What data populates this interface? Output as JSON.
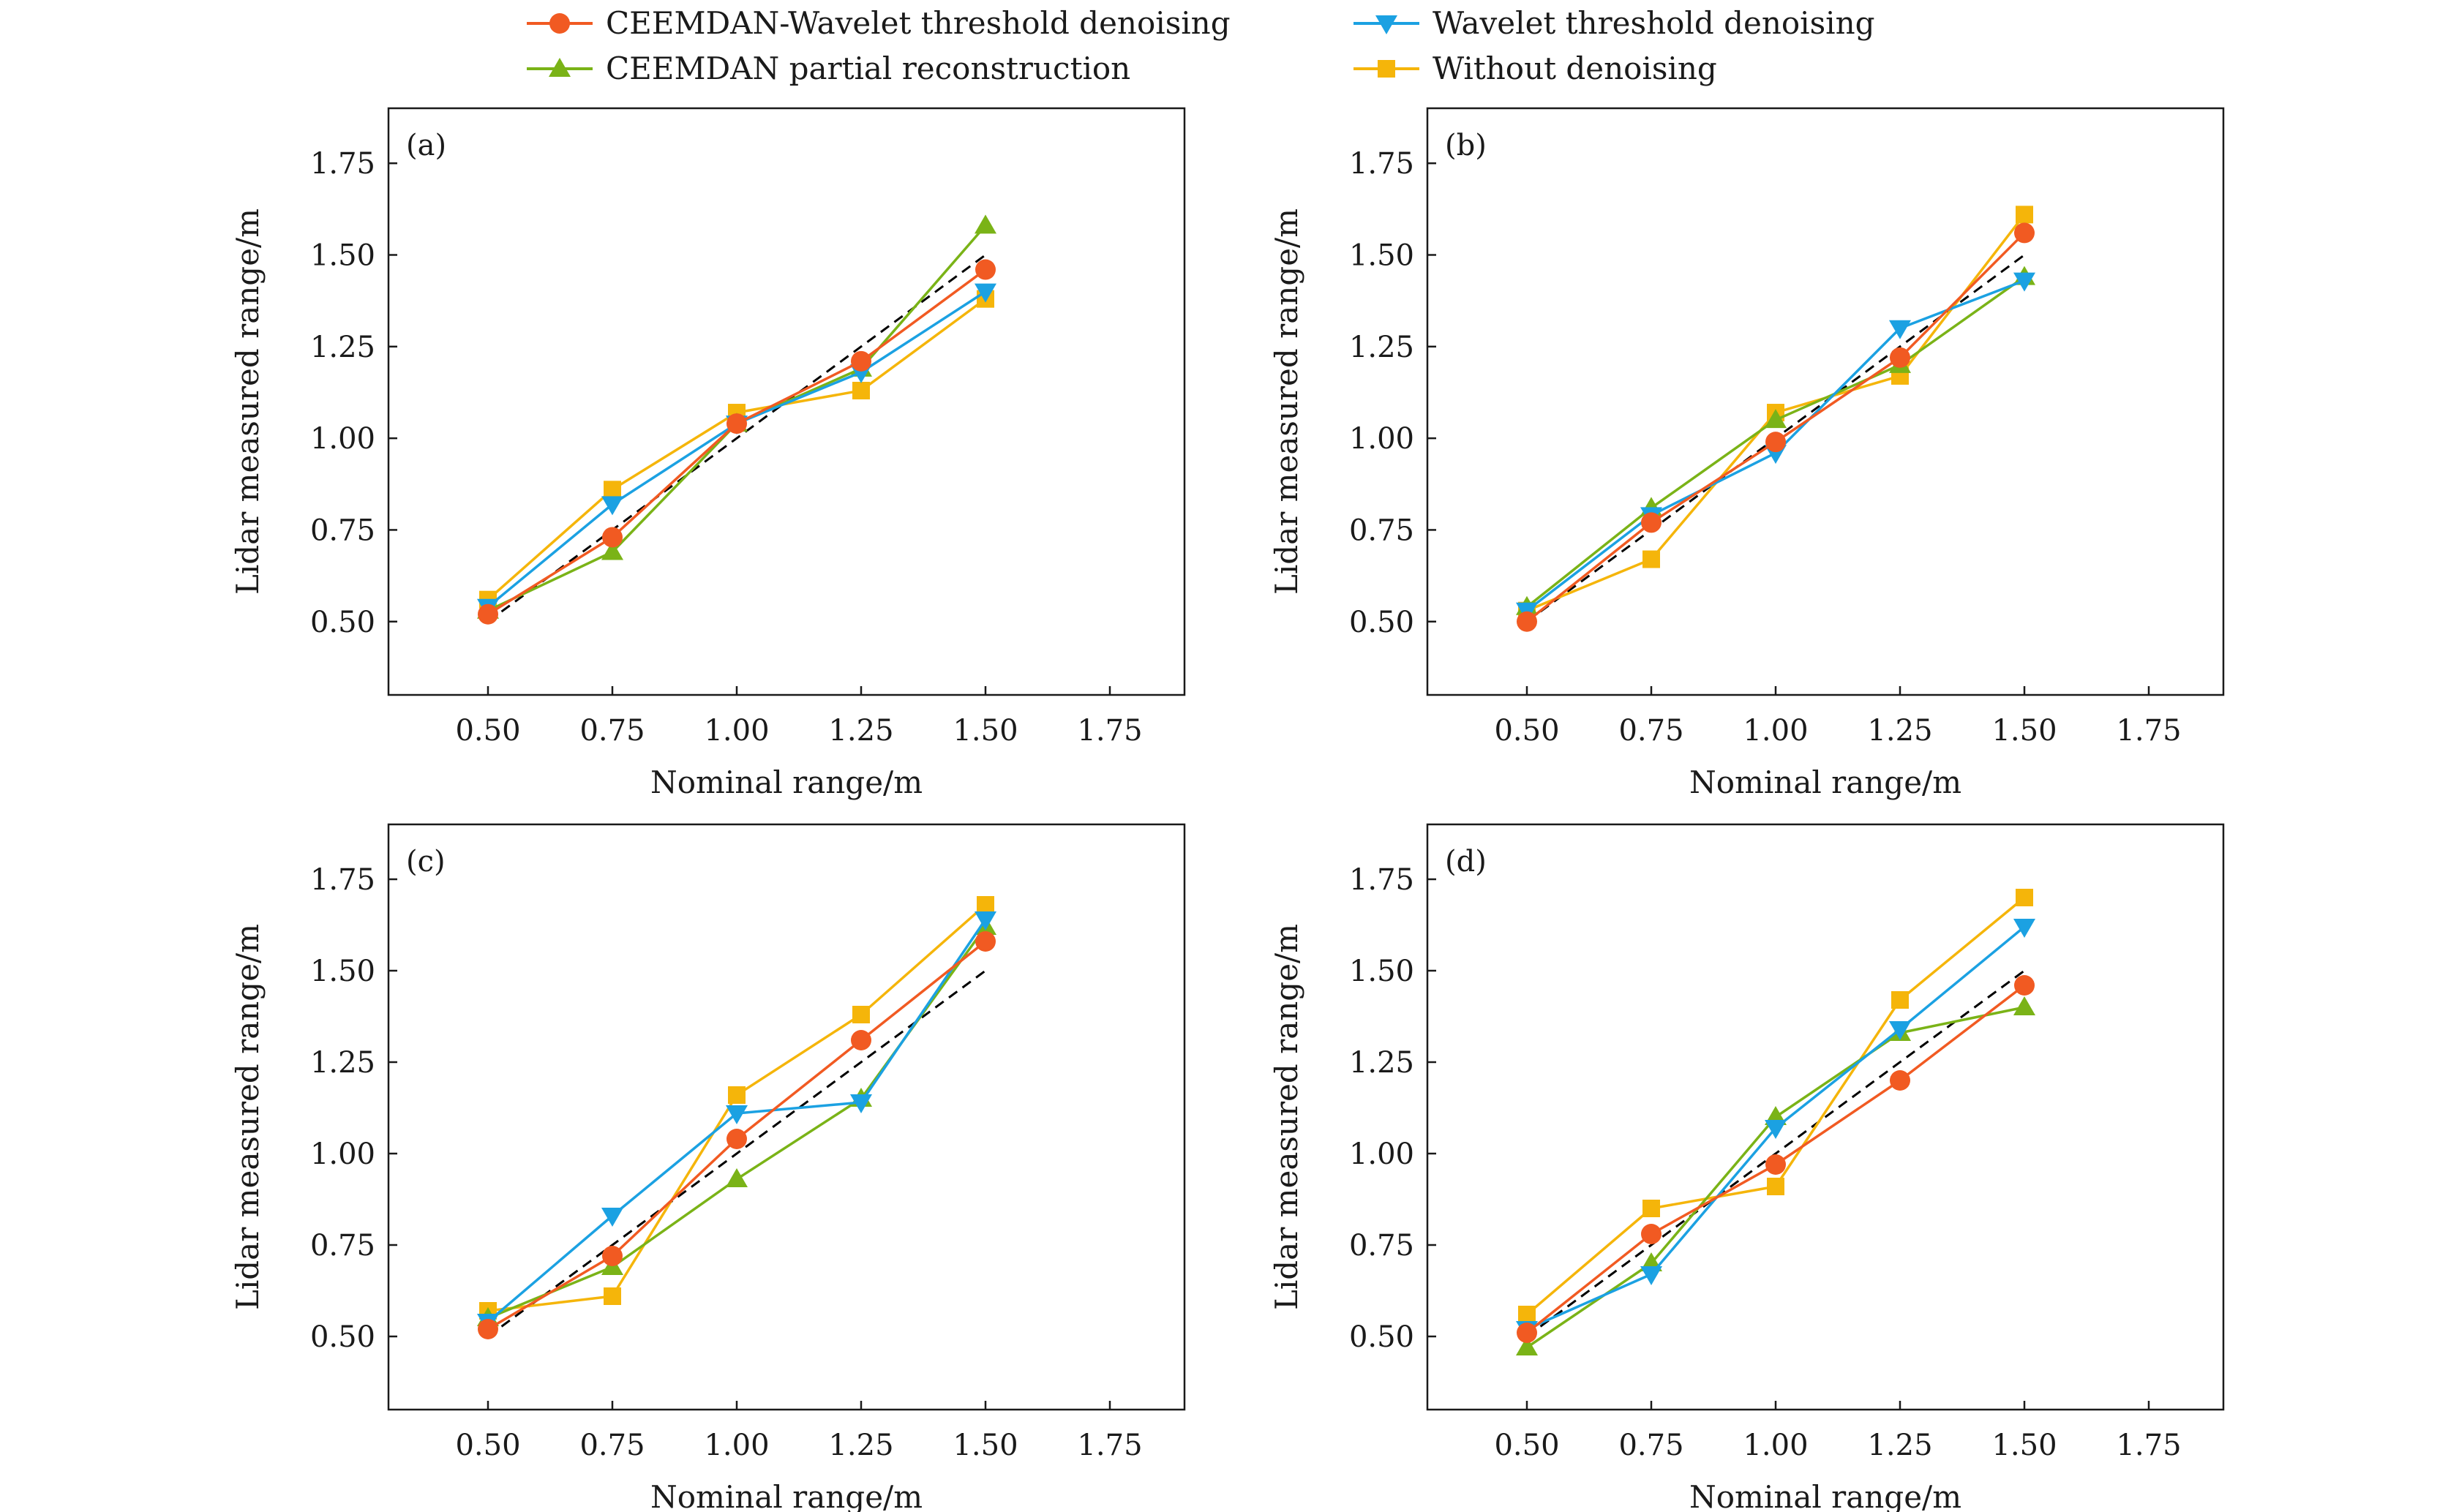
{
  "legend": [
    {
      "name": "CEEMDAN-Wavelet threshold denoising",
      "color": "#f15a22",
      "marker": "circle"
    },
    {
      "name": "Wavelet threshold denoising",
      "color": "#1ba1e2",
      "marker": "triangle-down"
    },
    {
      "name": "CEEMDAN partial reconstruction",
      "color": "#7ab317",
      "marker": "triangle-up"
    },
    {
      "name": "Without denoising",
      "color": "#f5b50a",
      "marker": "square"
    }
  ],
  "chart_data": [
    {
      "type": "line",
      "panel_label": "(a)",
      "xlabel": "Nominal range/m",
      "ylabel": "Lidar measured range/m",
      "xlim": [
        0.3,
        1.9
      ],
      "ylim": [
        0.3,
        1.9
      ],
      "xticks": [
        "0.50",
        "0.75",
        "1.00",
        "1.25",
        "1.50",
        "1.75"
      ],
      "yticks": [
        "0.50",
        "0.75",
        "1.00",
        "1.25",
        "1.50",
        "1.75"
      ],
      "x": [
        0.5,
        0.75,
        1.0,
        1.25,
        1.5
      ],
      "reference": {
        "name": "ideal",
        "x": [
          0.5,
          1.5
        ],
        "y": [
          0.5,
          1.5
        ]
      },
      "series": [
        {
          "name": "CEEMDAN-Wavelet threshold denoising",
          "values": [
            0.52,
            0.73,
            1.04,
            1.21,
            1.46
          ]
        },
        {
          "name": "Wavelet threshold denoising",
          "values": [
            0.54,
            0.82,
            1.04,
            1.18,
            1.4
          ]
        },
        {
          "name": "CEEMDAN partial reconstruction",
          "values": [
            0.53,
            0.69,
            1.04,
            1.19,
            1.58
          ]
        },
        {
          "name": "Without denoising",
          "values": [
            0.56,
            0.86,
            1.07,
            1.13,
            1.38
          ]
        }
      ]
    },
    {
      "type": "line",
      "panel_label": "(b)",
      "xlabel": "Nominal range/m",
      "ylabel": "Lidar measured range/m",
      "xlim": [
        0.3,
        1.9
      ],
      "ylim": [
        0.3,
        1.9
      ],
      "xticks": [
        "0.50",
        "0.75",
        "1.00",
        "1.25",
        "1.50",
        "1.75"
      ],
      "yticks": [
        "0.50",
        "0.75",
        "1.00",
        "1.25",
        "1.50",
        "1.75"
      ],
      "x": [
        0.5,
        0.75,
        1.0,
        1.25,
        1.5
      ],
      "reference": {
        "name": "ideal",
        "x": [
          0.5,
          1.5
        ],
        "y": [
          0.5,
          1.5
        ]
      },
      "series": [
        {
          "name": "CEEMDAN-Wavelet threshold denoising",
          "values": [
            0.5,
            0.77,
            0.99,
            1.22,
            1.56
          ]
        },
        {
          "name": "Wavelet threshold denoising",
          "values": [
            0.53,
            0.79,
            0.96,
            1.3,
            1.43
          ]
        },
        {
          "name": "CEEMDAN partial reconstruction",
          "values": [
            0.54,
            0.81,
            1.05,
            1.2,
            1.44
          ]
        },
        {
          "name": "Without denoising",
          "values": [
            0.53,
            0.67,
            1.07,
            1.17,
            1.61
          ]
        }
      ]
    },
    {
      "type": "line",
      "panel_label": "(c)",
      "xlabel": "Nominal range/m",
      "ylabel": "Lidar measured range/m",
      "xlim": [
        0.3,
        1.9
      ],
      "ylim": [
        0.3,
        1.9
      ],
      "xticks": [
        "0.50",
        "0.75",
        "1.00",
        "1.25",
        "1.50",
        "1.75"
      ],
      "yticks": [
        "0.50",
        "0.75",
        "1.00",
        "1.25",
        "1.50",
        "1.75"
      ],
      "x": [
        0.5,
        0.75,
        1.0,
        1.25,
        1.5
      ],
      "reference": {
        "name": "ideal",
        "x": [
          0.5,
          1.5
        ],
        "y": [
          0.5,
          1.5
        ]
      },
      "series": [
        {
          "name": "CEEMDAN-Wavelet threshold denoising",
          "values": [
            0.52,
            0.72,
            1.04,
            1.31,
            1.58
          ]
        },
        {
          "name": "Wavelet threshold denoising",
          "values": [
            0.54,
            0.83,
            1.11,
            1.14,
            1.64
          ]
        },
        {
          "name": "CEEMDAN partial reconstruction",
          "values": [
            0.55,
            0.69,
            0.93,
            1.15,
            1.62
          ]
        },
        {
          "name": "Without denoising",
          "values": [
            0.57,
            0.61,
            1.16,
            1.38,
            1.68
          ]
        }
      ]
    },
    {
      "type": "line",
      "panel_label": "(d)",
      "xlabel": "Nominal range/m",
      "ylabel": "Lidar measured range/m",
      "xlim": [
        0.3,
        1.9
      ],
      "ylim": [
        0.3,
        1.9
      ],
      "xticks": [
        "0.50",
        "0.75",
        "1.00",
        "1.25",
        "1.50",
        "1.75"
      ],
      "yticks": [
        "0.50",
        "0.75",
        "1.00",
        "1.25",
        "1.50",
        "1.75"
      ],
      "x": [
        0.5,
        0.75,
        1.0,
        1.25,
        1.5
      ],
      "reference": {
        "name": "ideal",
        "x": [
          0.5,
          1.5
        ],
        "y": [
          0.5,
          1.5
        ]
      },
      "series": [
        {
          "name": "CEEMDAN-Wavelet threshold denoising",
          "values": [
            0.51,
            0.78,
            0.97,
            1.2,
            1.46
          ]
        },
        {
          "name": "Wavelet threshold denoising",
          "values": [
            0.52,
            0.67,
            1.07,
            1.34,
            1.62
          ]
        },
        {
          "name": "CEEMDAN partial reconstruction",
          "values": [
            0.47,
            0.7,
            1.1,
            1.33,
            1.4
          ]
        },
        {
          "name": "Without denoising",
          "values": [
            0.56,
            0.85,
            0.91,
            1.42,
            1.7
          ]
        }
      ]
    }
  ]
}
